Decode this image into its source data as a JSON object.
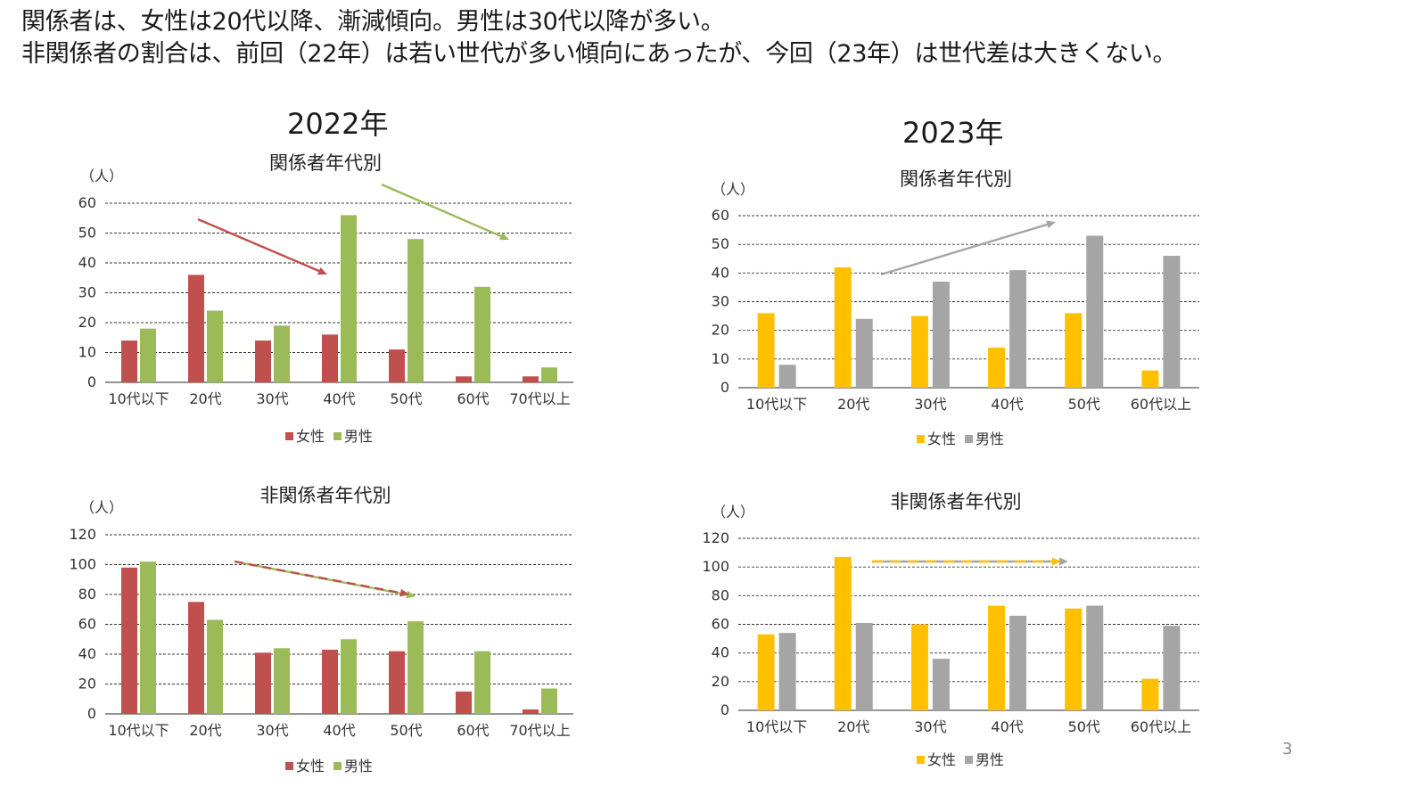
{
  "headline": {
    "line1": "関係者は、女性は20代以降、漸減傾向。男性は30代以降が多い。",
    "line2": "非関係者の割合は、前回（22年）は若い世代が多い傾向にあったが、今回（23年）は世代差は大きくない。"
  },
  "sections": {
    "year_2022": "2022年",
    "year_2023": "2023年"
  },
  "page_number": "3",
  "colors": {
    "female_2022": "#C0504D",
    "male_2022": "#9BBB59",
    "female_2023": "#FFC000",
    "male_2023": "#A5A5A5",
    "arrow_gray": "#A5A5A5"
  },
  "chart_data": [
    {
      "id": "related-2022",
      "type": "bar",
      "title": "関係者年代別",
      "ylabel": "（人）",
      "ylim": [
        0,
        60
      ],
      "yticks": [
        0,
        10,
        20,
        30,
        40,
        50,
        60
      ],
      "categories": [
        "10代以下",
        "20代",
        "30代",
        "40代",
        "50代",
        "60代",
        "70代以上"
      ],
      "series": [
        {
          "name": "女性",
          "color": "#C0504D",
          "values": [
            14,
            36,
            14,
            16,
            11,
            2,
            2
          ]
        },
        {
          "name": "男性",
          "color": "#9BBB59",
          "values": [
            18,
            24,
            19,
            56,
            48,
            32,
            5
          ]
        }
      ],
      "grid": "dashed",
      "legend": "bottom"
    },
    {
      "id": "related-2023",
      "type": "bar",
      "title": "関係者年代別",
      "ylabel": "（人）",
      "ylim": [
        0,
        60
      ],
      "yticks": [
        0,
        10,
        20,
        30,
        40,
        50,
        60
      ],
      "categories": [
        "10代以下",
        "20代",
        "30代",
        "40代",
        "50代",
        "60代以上"
      ],
      "series": [
        {
          "name": "女性",
          "color": "#FFC000",
          "values": [
            26,
            42,
            25,
            14,
            26,
            6
          ]
        },
        {
          "name": "男性",
          "color": "#A5A5A5",
          "values": [
            8,
            24,
            37,
            41,
            53,
            46
          ]
        }
      ],
      "grid": "dashed",
      "legend": "bottom"
    },
    {
      "id": "unrelated-2022",
      "type": "bar",
      "title": "非関係者年代別",
      "ylabel": "（人）",
      "ylim": [
        0,
        120
      ],
      "yticks": [
        0,
        20,
        40,
        60,
        80,
        100,
        120
      ],
      "categories": [
        "10代以下",
        "20代",
        "30代",
        "40代",
        "50代",
        "60代",
        "70代以上"
      ],
      "series": [
        {
          "name": "女性",
          "color": "#C0504D",
          "values": [
            98,
            75,
            41,
            43,
            42,
            15,
            3
          ]
        },
        {
          "name": "男性",
          "color": "#9BBB59",
          "values": [
            102,
            63,
            44,
            50,
            62,
            42,
            17
          ]
        }
      ],
      "grid": "dashed",
      "legend": "bottom"
    },
    {
      "id": "unrelated-2023",
      "type": "bar",
      "title": "非関係者年代別",
      "ylabel": "（人）",
      "ylim": [
        0,
        120
      ],
      "yticks": [
        0,
        20,
        40,
        60,
        80,
        100,
        120
      ],
      "categories": [
        "10代以下",
        "20代",
        "30代",
        "40代",
        "50代",
        "60代以上"
      ],
      "series": [
        {
          "name": "女性",
          "color": "#FFC000",
          "values": [
            53,
            107,
            60,
            73,
            71,
            22
          ]
        },
        {
          "name": "男性",
          "color": "#A5A5A5",
          "values": [
            54,
            61,
            36,
            66,
            73,
            59
          ]
        }
      ],
      "grid": "dashed",
      "legend": "bottom"
    }
  ]
}
